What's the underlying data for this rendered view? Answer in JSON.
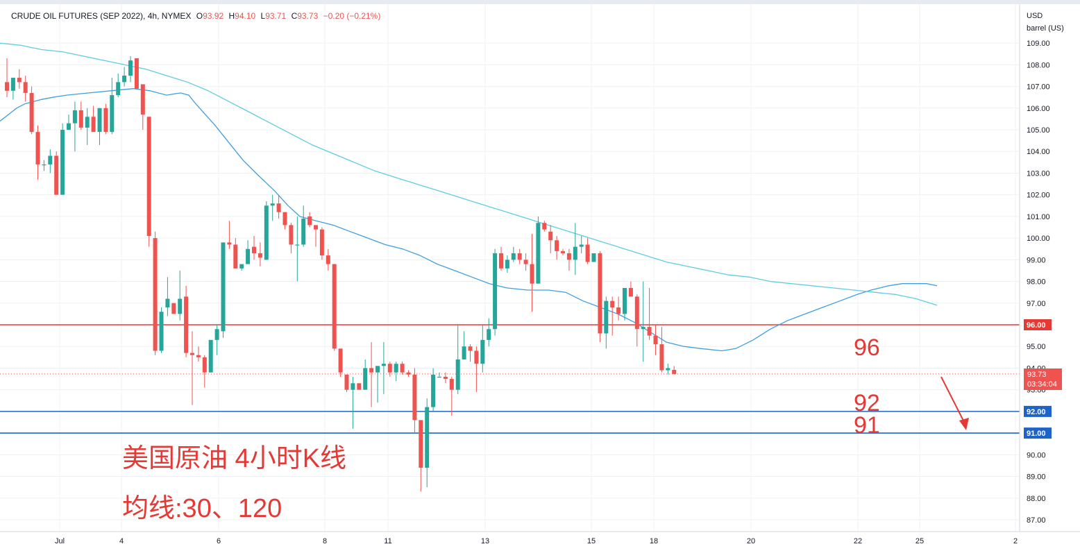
{
  "header": {
    "symbol": "CRUDE OIL FUTURES (SEP 2022), 4h, NYMEX",
    "open_label": "O",
    "open": "93.92",
    "high_label": "H",
    "high": "94.10",
    "low_label": "L",
    "low": "93.71",
    "close_label": "C",
    "close": "93.73",
    "change": "−0.20 (−0.21%)"
  },
  "price_axis": {
    "currency": "USD",
    "unit": "barrel (US)",
    "labels": [
      "109.00",
      "108.00",
      "107.00",
      "106.00",
      "105.00",
      "104.00",
      "103.00",
      "102.00",
      "101.00",
      "100.00",
      "99.00",
      "98.00",
      "97.00",
      "96.00",
      "95.00",
      "94.00",
      "93.00",
      "92.00",
      "91.00",
      "90.00",
      "89.00",
      "88.00",
      "87.00"
    ]
  },
  "last_price": {
    "value": "93.73",
    "countdown": "03:34:04",
    "color": "#ef5350"
  },
  "horizontal_lines": [
    {
      "value": 96,
      "label": "96.00",
      "color": "#e53935"
    },
    {
      "value": 92,
      "label": "92.00",
      "color": "#1e63c8"
    },
    {
      "value": 91,
      "label": "91.00",
      "color": "#1e63c8"
    }
  ],
  "time_axis": [
    "Jul",
    "4",
    "6",
    "8",
    "11",
    "13",
    "15",
    "18",
    "20",
    "22",
    "25",
    "2"
  ],
  "annotations": {
    "title": "美国原油 4小时K线",
    "subtitle": "均线:30、120",
    "level_96": "96",
    "level_92": "92",
    "level_91": "91",
    "color": "#e53935"
  },
  "colors": {
    "up": "#26a69a",
    "down": "#ef5350",
    "ma_fast": "#3d9fe0",
    "ma_slow": "#5ccde0",
    "grid": "#eef0f3"
  },
  "chart_data": {
    "type": "candlestick",
    "series": [
      {
        "name": "OHLC",
        "values": [
          [
            107.2,
            108.3,
            106.5,
            106.8
          ],
          [
            106.8,
            107.4,
            106.4,
            107.4
          ],
          [
            107.4,
            107.8,
            106.9,
            107.2
          ],
          [
            107.2,
            107.5,
            106.3,
            106.7
          ],
          [
            106.7,
            107.0,
            104.8,
            104.9
          ],
          [
            104.9,
            105.2,
            102.7,
            103.4
          ],
          [
            103.4,
            103.6,
            103.1,
            103.4
          ],
          [
            103.4,
            104.1,
            103.0,
            103.8
          ],
          [
            103.8,
            104.0,
            102.0,
            102.0
          ],
          [
            102.0,
            105.3,
            102.0,
            105.0
          ],
          [
            105.0,
            105.7,
            105.0,
            105.3
          ],
          [
            105.3,
            106.3,
            104.0,
            105.9
          ],
          [
            105.9,
            106.3,
            105.0,
            105.1
          ],
          [
            105.1,
            106.0,
            104.3,
            105.6
          ],
          [
            105.6,
            106.1,
            105.0,
            104.9
          ],
          [
            104.9,
            106.0,
            104.3,
            106.0
          ],
          [
            106.0,
            106.2,
            104.8,
            104.9
          ],
          [
            104.9,
            107.4,
            104.8,
            106.6
          ],
          [
            106.6,
            107.6,
            106.5,
            107.2
          ],
          [
            107.2,
            107.9,
            107.0,
            107.5
          ],
          [
            107.5,
            108.4,
            107.2,
            108.2
          ],
          [
            108.3,
            108.3,
            106.9,
            106.9
          ],
          [
            107.1,
            107.1,
            105.0,
            105.7
          ],
          [
            105.6,
            105.6,
            99.6,
            100.1
          ],
          [
            100.0,
            100.3,
            94.6,
            94.8
          ],
          [
            94.8,
            96.8,
            94.7,
            96.6
          ],
          [
            96.8,
            98.2,
            96.4,
            97.2
          ],
          [
            97.0,
            97.0,
            96.5,
            96.5
          ],
          [
            96.5,
            98.5,
            96.2,
            97.2
          ],
          [
            97.3,
            97.8,
            94.5,
            94.7
          ],
          [
            94.7,
            95.7,
            92.3,
            94.6
          ],
          [
            94.6,
            95.0,
            94.3,
            94.5
          ],
          [
            94.5,
            94.6,
            93.1,
            93.8
          ],
          [
            93.8,
            95.3,
            93.8,
            95.3
          ],
          [
            95.3,
            96.0,
            94.6,
            95.8
          ],
          [
            95.7,
            99.8,
            95.4,
            99.8
          ],
          [
            99.8,
            100.8,
            99.5,
            99.7
          ],
          [
            99.7,
            100.0,
            98.6,
            98.6
          ],
          [
            98.6,
            98.8,
            98.5,
            98.8
          ],
          [
            98.8,
            99.9,
            98.8,
            99.5
          ],
          [
            99.6,
            100.1,
            99.0,
            99.3
          ],
          [
            99.3,
            99.8,
            98.7,
            99.1
          ],
          [
            99.0,
            101.7,
            99.0,
            101.5
          ],
          [
            101.5,
            102.0,
            100.8,
            101.6
          ],
          [
            101.6,
            102.0,
            100.9,
            101.2
          ],
          [
            101.2,
            101.1,
            100.4,
            100.6
          ],
          [
            100.6,
            100.7,
            99.3,
            99.7
          ],
          [
            99.7,
            101.0,
            98.0,
            99.7
          ],
          [
            99.7,
            101.5,
            99.6,
            100.9
          ],
          [
            101.0,
            101.2,
            100.5,
            100.6
          ],
          [
            100.6,
            100.6,
            99.6,
            100.4
          ],
          [
            100.4,
            100.5,
            99.0,
            99.2
          ],
          [
            99.2,
            99.5,
            98.5,
            98.8
          ],
          [
            98.8,
            98.8,
            94.8,
            94.9
          ],
          [
            94.9,
            94.9,
            93.6,
            93.8
          ],
          [
            93.7,
            93.7,
            92.9,
            93.0
          ],
          [
            93.0,
            93.6,
            91.2,
            93.3
          ],
          [
            93.3,
            93.3,
            93.0,
            93.0
          ],
          [
            93.0,
            94.4,
            93.0,
            94.0
          ],
          [
            94.0,
            95.2,
            92.2,
            93.8
          ],
          [
            93.8,
            93.8,
            92.4,
            94.1
          ],
          [
            94.1,
            95.2,
            92.8,
            94.2
          ],
          [
            94.2,
            94.3,
            93.6,
            93.8
          ],
          [
            93.8,
            94.3,
            93.4,
            94.2
          ],
          [
            94.2,
            94.3,
            93.7,
            93.8
          ],
          [
            93.8,
            93.9,
            93.6,
            93.7
          ],
          [
            93.7,
            94.0,
            91.0,
            91.6
          ],
          [
            91.6,
            91.6,
            88.3,
            89.4
          ],
          [
            89.4,
            92.6,
            88.5,
            92.2
          ],
          [
            92.2,
            94.0,
            92.0,
            93.7
          ],
          [
            93.6,
            93.8,
            93.6,
            93.6
          ],
          [
            93.6,
            93.8,
            93.3,
            93.5
          ],
          [
            93.5,
            93.6,
            91.8,
            93.0
          ],
          [
            93.0,
            96.0,
            92.8,
            94.4
          ],
          [
            94.4,
            95.7,
            94.4,
            95.0
          ],
          [
            95.0,
            95.1,
            94.3,
            94.8
          ],
          [
            94.8,
            95.0,
            92.9,
            94.2
          ],
          [
            94.2,
            96.0,
            93.8,
            95.3
          ],
          [
            95.3,
            96.3,
            95.0,
            95.8
          ],
          [
            95.8,
            99.5,
            95.5,
            99.3
          ],
          [
            99.3,
            99.6,
            98.5,
            98.6
          ],
          [
            98.6,
            99.2,
            98.4,
            99.0
          ],
          [
            99.0,
            99.6,
            98.9,
            99.3
          ],
          [
            99.3,
            99.5,
            98.8,
            99.0
          ],
          [
            99.0,
            99.3,
            98.5,
            98.8
          ],
          [
            98.8,
            100.2,
            96.6,
            97.9
          ],
          [
            97.9,
            101.0,
            97.9,
            100.7
          ],
          [
            100.7,
            100.8,
            100.3,
            100.4
          ],
          [
            100.3,
            100.6,
            99.3,
            99.9
          ],
          [
            99.9,
            100.1,
            99.0,
            99.4
          ],
          [
            99.4,
            99.5,
            99.2,
            99.3
          ],
          [
            99.3,
            99.5,
            98.5,
            99.0
          ],
          [
            99.0,
            100.7,
            98.3,
            99.6
          ],
          [
            99.6,
            100.1,
            99.3,
            99.7
          ],
          [
            99.7,
            100.0,
            98.8,
            98.9
          ],
          [
            98.9,
            99.0,
            98.9,
            99.3
          ],
          [
            99.3,
            99.4,
            95.2,
            95.6
          ],
          [
            95.6,
            97.3,
            94.9,
            97.1
          ],
          [
            97.1,
            97.3,
            95.5,
            96.8
          ],
          [
            96.8,
            97.3,
            96.2,
            96.5
          ],
          [
            96.5,
            97.6,
            96.2,
            97.7
          ],
          [
            97.7,
            98.0,
            97.3,
            97.3
          ],
          [
            97.3,
            97.4,
            95.0,
            95.8
          ],
          [
            95.8,
            98.0,
            94.3,
            95.9
          ],
          [
            95.9,
            97.7,
            95.3,
            95.5
          ],
          [
            95.5,
            96.0,
            94.6,
            95.1
          ],
          [
            95.1,
            95.9,
            93.8,
            93.9
          ],
          [
            93.9,
            94.2,
            93.7,
            94.0
          ],
          [
            93.92,
            94.1,
            93.71,
            93.73
          ]
        ]
      },
      {
        "name": "MA30",
        "values": [
          [
            0,
            105.4
          ],
          [
            8,
            105.6
          ],
          [
            16,
            105.8
          ],
          [
            24,
            106.0
          ],
          [
            36,
            106.2
          ],
          [
            48,
            106.3
          ],
          [
            60,
            106.4
          ],
          [
            76,
            106.5
          ],
          [
            96,
            106.6
          ],
          [
            128,
            106.7
          ],
          [
            160,
            106.8
          ],
          [
            192,
            106.9
          ],
          [
            216,
            106.8
          ],
          [
            240,
            106.6
          ],
          [
            260,
            106.7
          ],
          [
            272,
            106.6
          ],
          [
            282,
            106.2
          ],
          [
            296,
            105.7
          ],
          [
            310,
            105.2
          ],
          [
            330,
            104.4
          ],
          [
            350,
            103.6
          ],
          [
            372,
            102.9
          ],
          [
            395,
            102.2
          ],
          [
            415,
            101.5
          ],
          [
            432,
            101.0
          ],
          [
            455,
            100.8
          ],
          [
            480,
            100.6
          ],
          [
            505,
            100.3
          ],
          [
            530,
            100.0
          ],
          [
            555,
            99.7
          ],
          [
            580,
            99.5
          ],
          [
            605,
            99.2
          ],
          [
            630,
            98.8
          ],
          [
            655,
            98.5
          ],
          [
            680,
            98.2
          ],
          [
            705,
            97.9
          ],
          [
            730,
            97.7
          ],
          [
            760,
            97.6
          ],
          [
            790,
            97.6
          ],
          [
            815,
            97.5
          ],
          [
            840,
            97.1
          ],
          [
            865,
            96.8
          ],
          [
            890,
            96.5
          ],
          [
            915,
            96.1
          ],
          [
            940,
            95.6
          ],
          [
            960,
            95.2
          ],
          [
            985,
            95.0
          ],
          [
            1010,
            94.9
          ],
          [
            1040,
            94.8
          ],
          [
            1060,
            94.9
          ],
          [
            1085,
            95.3
          ],
          [
            1110,
            95.8
          ],
          [
            1135,
            96.2
          ],
          [
            1160,
            96.5
          ],
          [
            1185,
            96.8
          ],
          [
            1210,
            97.1
          ],
          [
            1235,
            97.4
          ],
          [
            1255,
            97.6
          ],
          [
            1280,
            97.8
          ],
          [
            1300,
            97.9
          ],
          [
            1320,
            97.9
          ],
          [
            1335,
            97.9
          ],
          [
            1350,
            97.8
          ]
        ]
      },
      {
        "name": "MA120",
        "values": [
          [
            0,
            109.0
          ],
          [
            30,
            108.9
          ],
          [
            60,
            108.7
          ],
          [
            90,
            108.6
          ],
          [
            120,
            108.4
          ],
          [
            150,
            108.2
          ],
          [
            180,
            108.0
          ],
          [
            210,
            107.8
          ],
          [
            240,
            107.5
          ],
          [
            270,
            107.2
          ],
          [
            300,
            106.8
          ],
          [
            330,
            106.3
          ],
          [
            360,
            105.8
          ],
          [
            390,
            105.3
          ],
          [
            420,
            104.8
          ],
          [
            450,
            104.3
          ],
          [
            480,
            103.9
          ],
          [
            510,
            103.5
          ],
          [
            540,
            103.1
          ],
          [
            570,
            102.8
          ],
          [
            600,
            102.5
          ],
          [
            630,
            102.2
          ],
          [
            660,
            101.9
          ],
          [
            690,
            101.6
          ],
          [
            720,
            101.3
          ],
          [
            750,
            101.0
          ],
          [
            780,
            100.7
          ],
          [
            810,
            100.4
          ],
          [
            840,
            100.1
          ],
          [
            870,
            99.8
          ],
          [
            900,
            99.5
          ],
          [
            930,
            99.2
          ],
          [
            960,
            98.9
          ],
          [
            990,
            98.7
          ],
          [
            1020,
            98.5
          ],
          [
            1050,
            98.3
          ],
          [
            1080,
            98.2
          ],
          [
            1110,
            98.0
          ],
          [
            1140,
            97.9
          ],
          [
            1170,
            97.8
          ],
          [
            1200,
            97.7
          ],
          [
            1230,
            97.6
          ],
          [
            1260,
            97.5
          ],
          [
            1290,
            97.4
          ],
          [
            1320,
            97.2
          ],
          [
            1350,
            96.9
          ]
        ]
      }
    ],
    "title": "CRUDE OIL FUTURES (SEP 2022), 4h, NYMEX",
    "ylabel": "USD barrel (US)",
    "ylim": [
      86.5,
      109.5
    ],
    "grid": true,
    "legend": "none"
  }
}
